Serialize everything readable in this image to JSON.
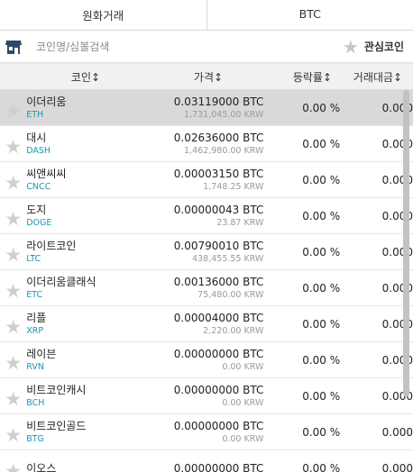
{
  "tabs": [
    {
      "label": "원화거래"
    },
    {
      "label": "BTC"
    }
  ],
  "search": {
    "placeholder": "코인명/심볼검색",
    "favorite_label": "관심코인"
  },
  "table": {
    "headers": {
      "name": "코인↕",
      "price": "가격↕",
      "change": "등락률↕",
      "volume": "거래대금↕"
    },
    "rows": [
      {
        "name": "이더리움",
        "symbol": "ETH",
        "price_btc": "0.03119000 BTC",
        "price_krw": "1,731,045.00 KRW",
        "change": "0.00 %",
        "volume": "0.000"
      },
      {
        "name": "대시",
        "symbol": "DASH",
        "price_btc": "0.02636000 BTC",
        "price_krw": "1,462,980.00 KRW",
        "change": "0.00 %",
        "volume": "0.000"
      },
      {
        "name": "씨앤씨씨",
        "symbol": "CNCC",
        "price_btc": "0.00003150 BTC",
        "price_krw": "1,748.25 KRW",
        "change": "0.00 %",
        "volume": "0.000"
      },
      {
        "name": "도지",
        "symbol": "DOGE",
        "price_btc": "0.00000043 BTC",
        "price_krw": "23.87 KRW",
        "change": "0.00 %",
        "volume": "0.000"
      },
      {
        "name": "라이트코인",
        "symbol": "LTC",
        "price_btc": "0.00790010 BTC",
        "price_krw": "438,455.55 KRW",
        "change": "0.00 %",
        "volume": "0.000"
      },
      {
        "name": "이더리움클래식",
        "symbol": "ETC",
        "price_btc": "0.00136000 BTC",
        "price_krw": "75,480.00 KRW",
        "change": "0.00 %",
        "volume": "0.000"
      },
      {
        "name": "리플",
        "symbol": "XRP",
        "price_btc": "0.00004000 BTC",
        "price_krw": "2,220.00 KRW",
        "change": "0.00 %",
        "volume": "0.000"
      },
      {
        "name": "레이븐",
        "symbol": "RVN",
        "price_btc": "0.00000000 BTC",
        "price_krw": "0.00 KRW",
        "change": "0.00 %",
        "volume": "0.000"
      },
      {
        "name": "비트코인캐시",
        "symbol": "BCH",
        "price_btc": "0.00000000 BTC",
        "price_krw": "0.00 KRW",
        "change": "0.00 %",
        "volume": "0.000"
      },
      {
        "name": "비트코인골드",
        "symbol": "BTG",
        "price_btc": "0.00000000 BTC",
        "price_krw": "0.00 KRW",
        "change": "0.00 %",
        "volume": "0.000"
      },
      {
        "name": "이오스",
        "symbol": "",
        "price_btc": "0.00000000 BTC",
        "price_krw": "",
        "change": "0.00 %",
        "volume": "0.000"
      }
    ]
  },
  "colors": {
    "symbol": "#1a97b5",
    "selected_row": "#d9d9d9",
    "header_bg": "#f1f1f1",
    "star": "#cfcfcf"
  },
  "icons": {
    "shop": "shop-icon",
    "star": "star-icon"
  }
}
